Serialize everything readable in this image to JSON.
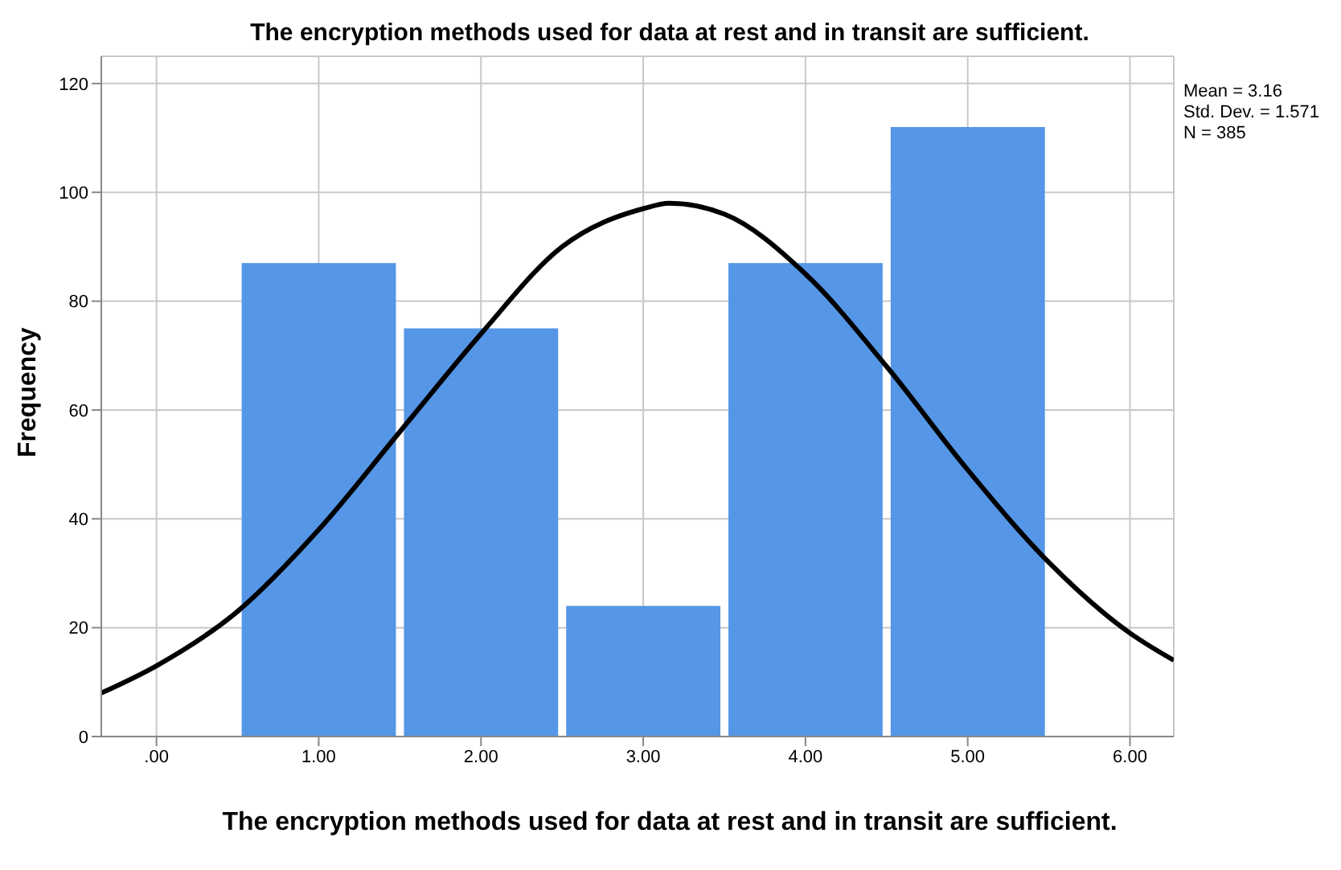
{
  "chart_data": {
    "type": "histogram",
    "title": "The encryption methods used for data at rest and in transit are sufficient.",
    "xlabel": "The encryption methods used for data at rest and in transit are sufficient.",
    "ylabel": "Frequency",
    "bins": [
      0.5,
      1.5,
      2.5,
      3.5,
      4.5,
      5.5
    ],
    "values": [
      87,
      75,
      24,
      87,
      112
    ],
    "color": "#5596e6",
    "series": [
      {
        "type": "line",
        "color": "#000000",
        "x": [
          -0.34,
          0,
          0.5,
          1,
          1.5,
          2,
          2.5,
          3,
          3.16,
          3.5,
          4,
          4.5,
          5,
          5.5,
          6,
          6.27
        ],
        "values": [
          8,
          13,
          23,
          38,
          56,
          74,
          90,
          97,
          98,
          96,
          85,
          68,
          49,
          32,
          19,
          14
        ]
      }
    ],
    "xlim": [
      -0.34,
      6.27
    ],
    "xticks": [
      {
        "value": 0,
        "label": ".00"
      },
      {
        "value": 1,
        "label": "1.00"
      },
      {
        "value": 2,
        "label": "2.00"
      },
      {
        "value": 3,
        "label": "3.00"
      },
      {
        "value": 4,
        "label": "4.00"
      },
      {
        "value": 5,
        "label": "5.00"
      },
      {
        "value": 6,
        "label": "6.00"
      }
    ],
    "ylim": [
      0,
      125
    ],
    "yticks": [
      0,
      20,
      40,
      60,
      80,
      100,
      120
    ],
    "grid": true,
    "marker": "none",
    "annotations": [
      "Mean = 3.16",
      "Std. Dev. = 1.571",
      "N = 385"
    ]
  }
}
